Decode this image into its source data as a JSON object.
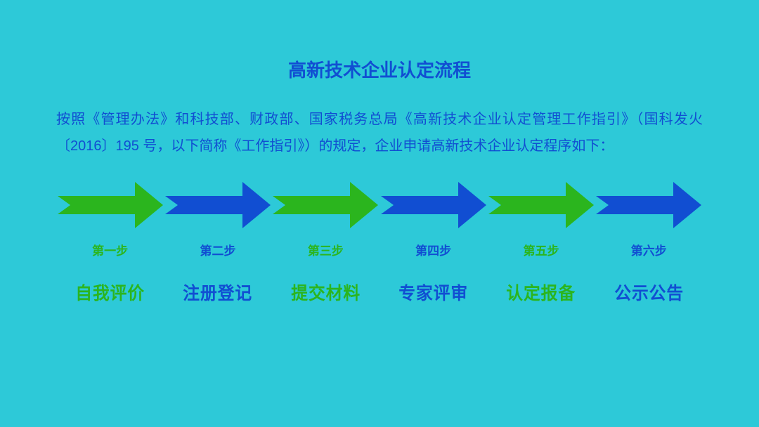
{
  "background_color": "#2dc9d8",
  "title": {
    "text": "高新技术企业认定流程",
    "color": "#114ed2",
    "fontsize": 26
  },
  "description": {
    "text": "按照《管理办法》和科技部、财政部、国家税务总局《高新技术企业认定管理工作指引》（国科发火〔2016〕195 号，以下简称《工作指引》）的规定，企业申请高新技术企业认定程序如下：",
    "color": "#114ed2",
    "fontsize": 20
  },
  "process": {
    "type": "flowchart",
    "arrow": {
      "width": 150,
      "height": 66,
      "tail_width": 18,
      "body_height": 26,
      "head_width": 40
    },
    "step_fontsize": 17,
    "label_fontsize": 25,
    "colors": {
      "green": "#2bb51e",
      "blue": "#114ed2"
    },
    "steps": [
      {
        "step": "第一步",
        "label": "自我评价",
        "color_key": "green"
      },
      {
        "step": "第二步",
        "label": "注册登记",
        "color_key": "blue"
      },
      {
        "step": "第三步",
        "label": "提交材料",
        "color_key": "green"
      },
      {
        "step": "第四步",
        "label": "专家评审",
        "color_key": "blue"
      },
      {
        "step": "第五步",
        "label": "认定报备",
        "color_key": "green"
      },
      {
        "step": "第六步",
        "label": "公示公告",
        "color_key": "blue"
      }
    ]
  }
}
